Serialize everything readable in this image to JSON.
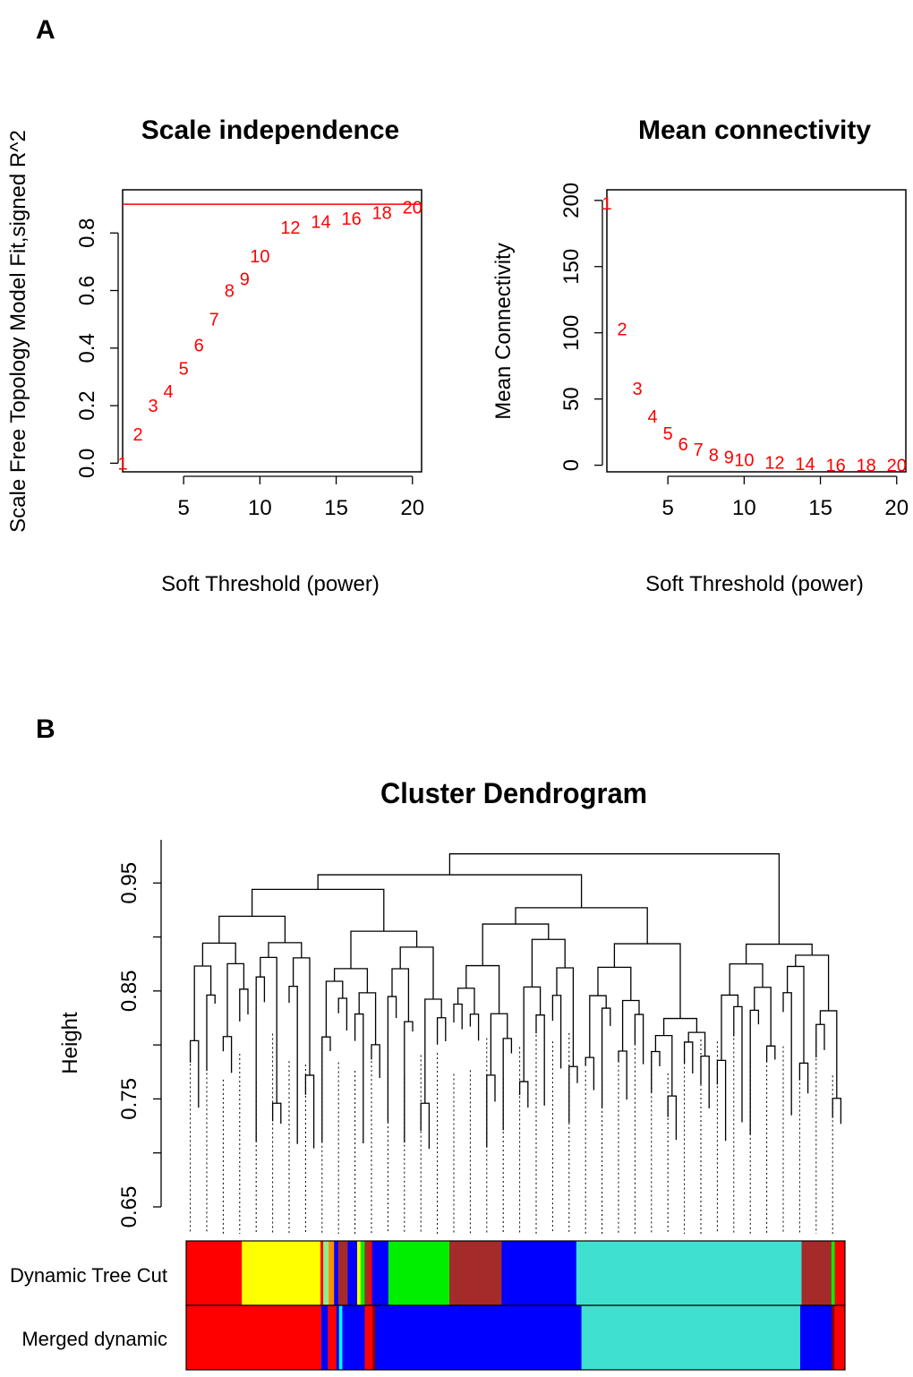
{
  "panels": {
    "a": "A",
    "b": "B"
  },
  "colors": {
    "points": "#ff0000",
    "module_colors": {
      "red": "#ff0000",
      "yellow": "#ffff00",
      "green": "#00ee00",
      "brown": "#a52a2a",
      "blue": "#0000ff",
      "turquoise": "#40e0d0",
      "lightgreen": "#90ee90",
      "cyan": "#00ffff",
      "orange": "#ff8c00",
      "darkred": "#8b0000"
    }
  },
  "chart_data": [
    {
      "type": "scatter",
      "title": "Scale independence",
      "xlabel": "Soft Threshold (power)",
      "ylabel": "Scale Free Topology Model Fit,signed R^2",
      "xlim": [
        1,
        20.6
      ],
      "ylim": [
        -0.03,
        0.95
      ],
      "xticks": [
        5,
        10,
        15,
        20
      ],
      "yticks": [
        0.0,
        0.2,
        0.4,
        0.6,
        0.8
      ],
      "ytick_labels": [
        "0.0",
        "0.2",
        "0.4",
        "0.6",
        "0.8"
      ],
      "hline": 0.9,
      "points": [
        {
          "x": 1,
          "y": 0.0,
          "label": "1"
        },
        {
          "x": 2,
          "y": 0.1,
          "label": "2"
        },
        {
          "x": 3,
          "y": 0.2,
          "label": "3"
        },
        {
          "x": 4,
          "y": 0.25,
          "label": "4"
        },
        {
          "x": 5,
          "y": 0.33,
          "label": "5"
        },
        {
          "x": 6,
          "y": 0.41,
          "label": "6"
        },
        {
          "x": 7,
          "y": 0.5,
          "label": "7"
        },
        {
          "x": 8,
          "y": 0.6,
          "label": "8"
        },
        {
          "x": 9,
          "y": 0.64,
          "label": "9"
        },
        {
          "x": 10,
          "y": 0.72,
          "label": "10"
        },
        {
          "x": 12,
          "y": 0.82,
          "label": "12"
        },
        {
          "x": 14,
          "y": 0.84,
          "label": "14"
        },
        {
          "x": 16,
          "y": 0.85,
          "label": "16"
        },
        {
          "x": 18,
          "y": 0.87,
          "label": "18"
        },
        {
          "x": 20,
          "y": 0.89,
          "label": "20"
        }
      ]
    },
    {
      "type": "scatter",
      "title": "Mean connectivity",
      "xlabel": "Soft Threshold (power)",
      "ylabel": "Mean Connectivity",
      "xlim": [
        1,
        20.6
      ],
      "ylim": [
        -5,
        208
      ],
      "xticks": [
        5,
        10,
        15,
        20
      ],
      "yticks": [
        0,
        50,
        100,
        150,
        200
      ],
      "ytick_labels": [
        "0",
        "50",
        "100",
        "150",
        "200"
      ],
      "points": [
        {
          "x": 1,
          "y": 198,
          "label": "1"
        },
        {
          "x": 2,
          "y": 103,
          "label": "2"
        },
        {
          "x": 3,
          "y": 58,
          "label": "3"
        },
        {
          "x": 4,
          "y": 37,
          "label": "4"
        },
        {
          "x": 5,
          "y": 24,
          "label": "5"
        },
        {
          "x": 6,
          "y": 16,
          "label": "6"
        },
        {
          "x": 7,
          "y": 12,
          "label": "7"
        },
        {
          "x": 8,
          "y": 8,
          "label": "8"
        },
        {
          "x": 9,
          "y": 6,
          "label": "9"
        },
        {
          "x": 10,
          "y": 4,
          "label": "10"
        },
        {
          "x": 12,
          "y": 2,
          "label": "12"
        },
        {
          "x": 14,
          "y": 1,
          "label": "14"
        },
        {
          "x": 16,
          "y": 0,
          "label": "16"
        },
        {
          "x": 18,
          "y": 0,
          "label": "18"
        },
        {
          "x": 20,
          "y": 0,
          "label": "20"
        }
      ]
    },
    {
      "type": "dendrogram",
      "title": "Cluster Dendrogram",
      "ylabel": "Height",
      "ylim": [
        0.65,
        0.99
      ],
      "yticks": [
        0.65,
        0.7,
        0.75,
        0.8,
        0.85,
        0.9,
        0.95
      ],
      "ytick_labels": [
        "0.65",
        "",
        "0.75",
        "",
        "0.85",
        "",
        "0.95"
      ],
      "leaves": 80,
      "seed": 7,
      "row_labels": [
        "Dynamic Tree Cut",
        "Merged dynamic"
      ],
      "rows": [
        [
          {
            "color": "red",
            "share": 8.2
          },
          {
            "color": "yellow",
            "share": 11.6
          },
          {
            "color": "red",
            "share": 0.4
          },
          {
            "color": "lightgreen",
            "share": 0.8
          },
          {
            "color": "orange",
            "share": 0.8
          },
          {
            "color": "blue",
            "share": 0.6
          },
          {
            "color": "brown",
            "share": 1.4
          },
          {
            "color": "blue",
            "share": 1.4
          },
          {
            "color": "yellow",
            "share": 0.5
          },
          {
            "color": "green",
            "share": 0.6
          },
          {
            "color": "brown",
            "share": 0.7
          },
          {
            "color": "red",
            "share": 0.4
          },
          {
            "color": "blue",
            "share": 2.4
          },
          {
            "color": "green",
            "share": 9.0
          },
          {
            "color": "brown",
            "share": 7.7
          },
          {
            "color": "blue",
            "share": 11.0
          },
          {
            "color": "turquoise",
            "share": 33.2
          },
          {
            "color": "brown",
            "share": 4.4
          },
          {
            "color": "green",
            "share": 0.5
          },
          {
            "color": "red",
            "share": 1.5
          }
        ],
        [
          {
            "color": "red",
            "share": 20.5
          },
          {
            "color": "blue",
            "share": 1.0
          },
          {
            "color": "red",
            "share": 1.3
          },
          {
            "color": "blue",
            "share": 0.4
          },
          {
            "color": "cyan",
            "share": 0.5
          },
          {
            "color": "blue",
            "share": 3.4
          },
          {
            "color": "red",
            "share": 1.2
          },
          {
            "color": "darkred",
            "share": 0.4
          },
          {
            "color": "blue",
            "share": 31.3
          },
          {
            "color": "turquoise",
            "share": 33.2
          },
          {
            "color": "blue",
            "share": 4.8
          },
          {
            "color": "darkred",
            "share": 0.4
          },
          {
            "color": "red",
            "share": 1.6
          }
        ]
      ]
    }
  ]
}
